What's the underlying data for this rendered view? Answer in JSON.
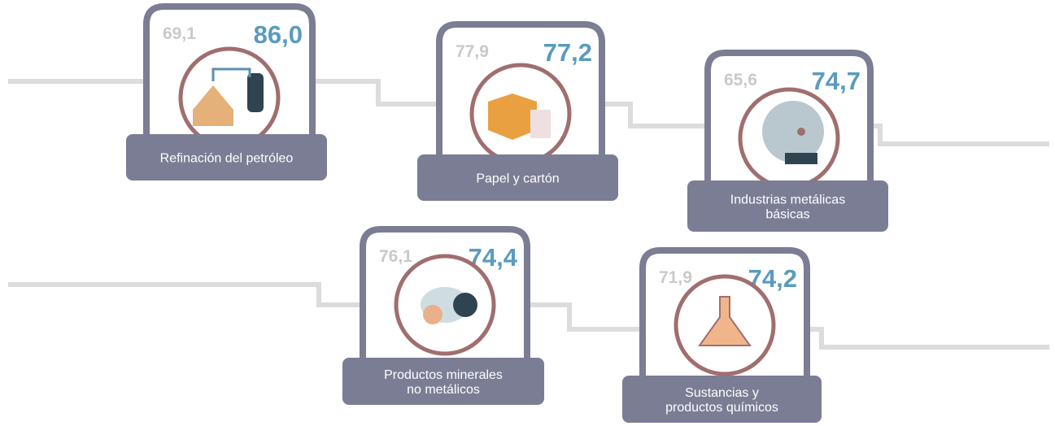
{
  "items": [
    {
      "label": [
        "Refinación del petróleo"
      ],
      "value_left": "69,1",
      "value_right": "86,0"
    },
    {
      "label": [
        "Papel y cartón"
      ],
      "value_left": "77,9",
      "value_right": "77,2"
    },
    {
      "label": [
        "Industrias metálicas",
        "básicas"
      ],
      "value_left": "65,6",
      "value_right": "74,7"
    },
    {
      "label": [
        "Productos minerales",
        "no metálicos"
      ],
      "value_left": "76,1",
      "value_right": "74,4"
    },
    {
      "label": [
        "Sustancias y",
        "productos químicos"
      ],
      "value_left": "71,9",
      "value_right": "74,2"
    }
  ]
}
